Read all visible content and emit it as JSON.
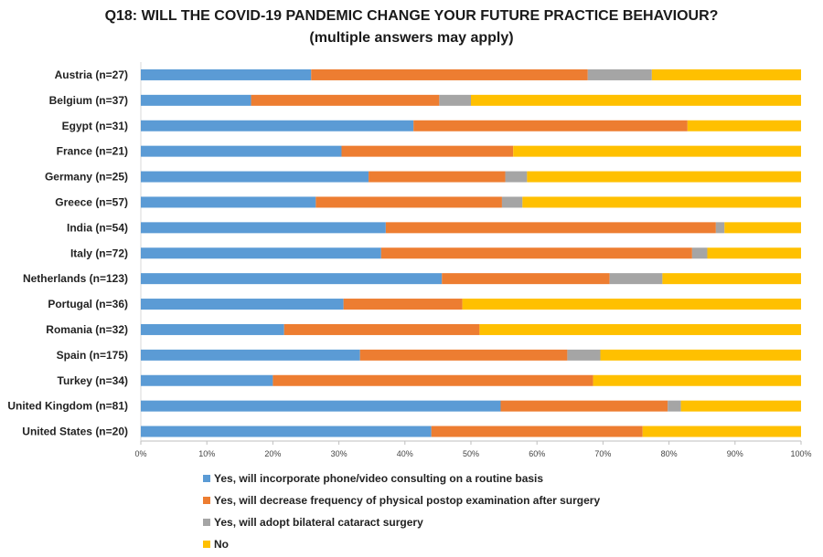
{
  "chart_data": {
    "type": "bar",
    "orientation": "horizontal",
    "stacked": "percent",
    "title": "Q18: WILL THE COVID-19 PANDEMIC CHANGE YOUR FUTURE PRACTICE BEHAVIOUR?",
    "subtitle": "(multiple answers may apply)",
    "xlabel": "",
    "ylabel": "",
    "xlim": [
      0,
      100
    ],
    "x_ticks": [
      "0%",
      "10%",
      "20%",
      "30%",
      "40%",
      "50%",
      "60%",
      "70%",
      "80%",
      "90%",
      "100%"
    ],
    "grid": false,
    "legend_position": "bottom",
    "categories": [
      "Austria (n=27)",
      "Belgium (n=37)",
      "Egypt (n=31)",
      "France (n=21)",
      "Germany (n=25)",
      "Greece (n=57)",
      "India (n=54)",
      "Italy (n=72)",
      "Netherlands (n=123)",
      "Portugal (n=36)",
      "Romania (n=32)",
      "Spain (n=175)",
      "Turkey (n=34)",
      "United Kingdom (n=81)",
      "United States (n=20)"
    ],
    "series": [
      {
        "name": "Yes, will incorporate phone/video consulting on a routine basis",
        "color": "#5B9BD5",
        "values": [
          25.8,
          16.7,
          41.3,
          30.4,
          34.5,
          26.5,
          37.1,
          36.4,
          45.6,
          30.7,
          21.7,
          33.2,
          20.0,
          54.5,
          44.0
        ]
      },
      {
        "name": "Yes, will decrease frequency of physical postop examination after surgery",
        "color": "#ED7D31",
        "values": [
          41.9,
          28.5,
          41.5,
          26.0,
          20.7,
          28.2,
          50.0,
          47.1,
          25.4,
          18.0,
          29.6,
          31.4,
          48.5,
          25.3,
          32.0
        ]
      },
      {
        "name": "Yes, will adopt bilateral cataract surgery",
        "color": "#A5A5A5",
        "values": [
          9.7,
          4.8,
          0.0,
          0.0,
          3.3,
          3.1,
          1.3,
          2.3,
          8.0,
          0.0,
          0.0,
          5.0,
          0.0,
          2.0,
          0.0
        ]
      },
      {
        "name": "No",
        "color": "#FFC000",
        "values": [
          22.6,
          50.0,
          17.2,
          43.6,
          41.5,
          42.2,
          11.6,
          14.2,
          21.0,
          51.3,
          48.7,
          30.4,
          31.5,
          18.2,
          24.0
        ]
      }
    ]
  }
}
